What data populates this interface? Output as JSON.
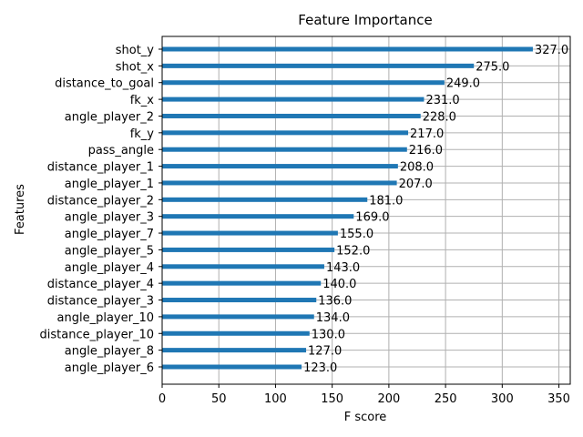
{
  "chart_data": {
    "type": "bar",
    "orientation": "horizontal",
    "title": "Feature Importance",
    "xlabel": "F score",
    "ylabel": "Features",
    "xlim": [
      0,
      360
    ],
    "xticks": [
      0,
      50,
      100,
      150,
      200,
      250,
      300,
      350
    ],
    "grid": true,
    "categories": [
      "shot_y",
      "shot_x",
      "distance_to_goal",
      "fk_x",
      "angle_player_2",
      "fk_y",
      "pass_angle",
      "distance_player_1",
      "angle_player_1",
      "distance_player_2",
      "angle_player_3",
      "angle_player_7",
      "angle_player_5",
      "angle_player_4",
      "distance_player_4",
      "distance_player_3",
      "angle_player_10",
      "distance_player_10",
      "angle_player_8",
      "angle_player_6"
    ],
    "values": [
      327,
      275,
      249,
      231,
      228,
      217,
      216,
      208,
      207,
      181,
      169,
      155,
      152,
      143,
      140,
      136,
      134,
      130,
      127,
      123
    ],
    "value_labels": [
      "327.0",
      "275.0",
      "249.0",
      "231.0",
      "228.0",
      "217.0",
      "216.0",
      "208.0",
      "207.0",
      "181.0",
      "169.0",
      "155.0",
      "152.0",
      "143.0",
      "140.0",
      "136.0",
      "134.0",
      "130.0",
      "127.0",
      "123.0"
    ],
    "bar_color": "#1f77b4",
    "grid_color": "#b0b0b0"
  }
}
